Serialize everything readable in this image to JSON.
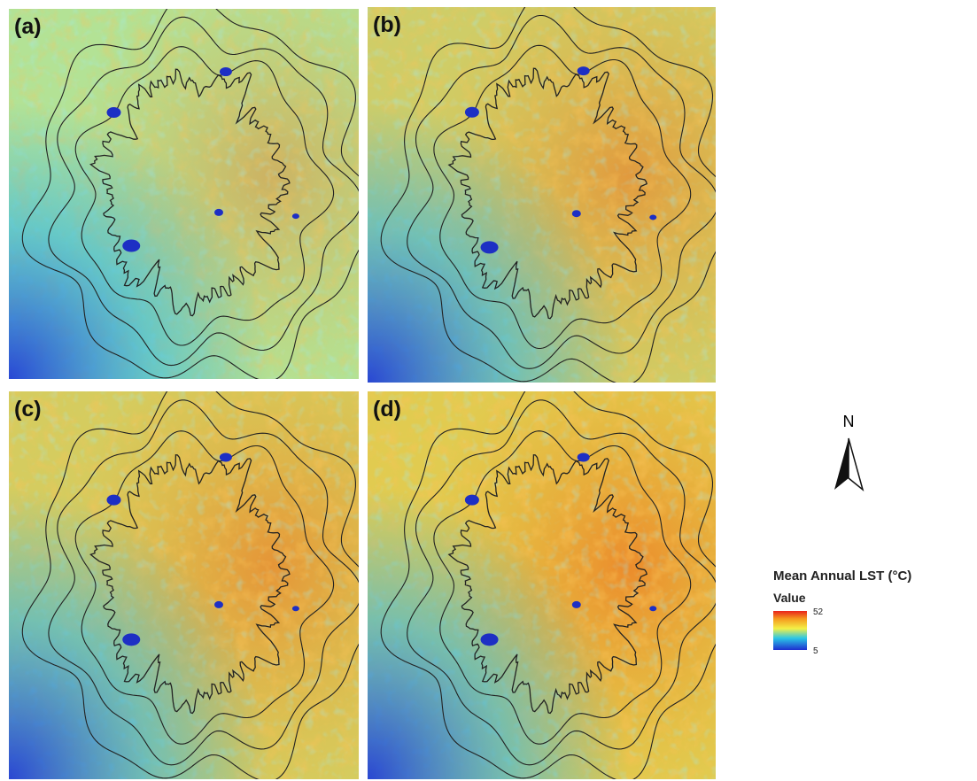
{
  "panels": [
    {
      "label": "(a)"
    },
    {
      "label": "(b)"
    },
    {
      "label": "(c)"
    },
    {
      "label": "(d)"
    }
  ],
  "north": "N",
  "legend": {
    "title": "Mean Annual  LST  (°C)",
    "subtitle": "Value",
    "max": 52,
    "min": 5
  }
}
